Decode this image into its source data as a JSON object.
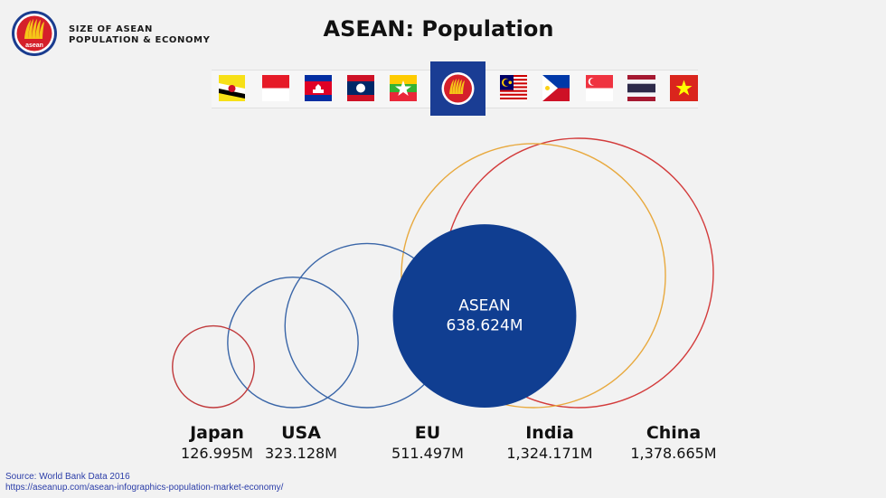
{
  "header": {
    "brand_line1": "SIZE OF ASEAN",
    "brand_line2": "POPULATION & ECONOMY",
    "logo_text": "asean",
    "title": "ASEAN: Population"
  },
  "flags": [
    "Brunei",
    "Indonesia",
    "Cambodia",
    "Laos",
    "Myanmar",
    "ASEAN",
    "Malaysia",
    "Philippines",
    "Singapore",
    "Thailand",
    "Vietnam"
  ],
  "chart_data": {
    "type": "bubble",
    "title": "ASEAN: Population",
    "unit": "M",
    "series": [
      {
        "name": "Japan",
        "value": 126.995,
        "label": "126.995M",
        "color": "#c0393b"
      },
      {
        "name": "USA",
        "value": 323.128,
        "label": "323.128M",
        "color": "#3a66a8"
      },
      {
        "name": "EU",
        "value": 511.497,
        "label": "511.497M",
        "color": "#3a66a8"
      },
      {
        "name": "India",
        "value": 1324.171,
        "label": "1,324.171M",
        "color": "#e8a93e"
      },
      {
        "name": "China",
        "value": 1378.665,
        "label": "1,378.665M",
        "color": "#d33b3b"
      }
    ],
    "highlight": {
      "name": "ASEAN",
      "value": 638.624,
      "label": "638.624M",
      "color": "#103e91"
    }
  },
  "footer": {
    "source": "Source: World Bank Data 2016",
    "url": "https://aseanup.com/asean-infographics-population-market-economy/"
  }
}
